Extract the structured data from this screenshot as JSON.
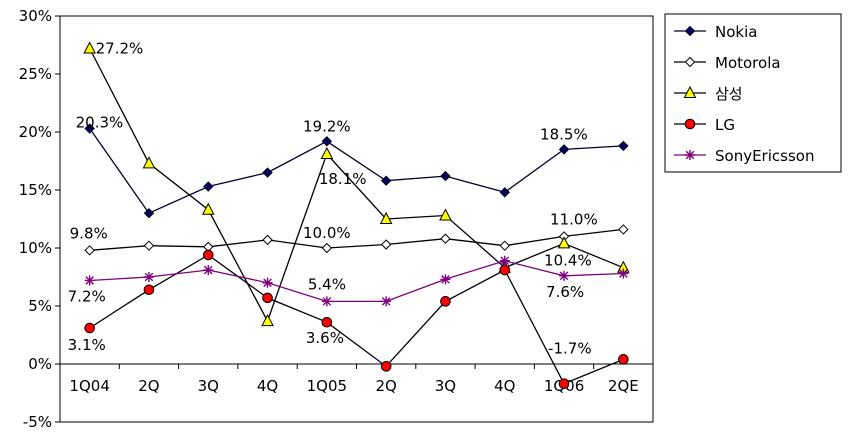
{
  "chart_data": {
    "type": "line",
    "categories": [
      "1Q04",
      "2Q",
      "3Q",
      "4Q",
      "1Q05",
      "2Q",
      "3Q",
      "4Q",
      "1Q06",
      "2QE"
    ],
    "ylim": [
      -5,
      30
    ],
    "yticks": [
      -5,
      0,
      5,
      10,
      15,
      20,
      25,
      30
    ],
    "ytick_labels": [
      "-5%",
      "0%",
      "5%",
      "10%",
      "15%",
      "20%",
      "25%",
      "30%"
    ],
    "grid": false,
    "legend_position": "right",
    "series": [
      {
        "name": "Nokia",
        "marker": "diamond-filled",
        "color": "#000033",
        "marker_fill": "#000066",
        "values": [
          20.3,
          13.0,
          15.3,
          16.5,
          19.2,
          15.8,
          16.2,
          14.8,
          18.5,
          18.8
        ]
      },
      {
        "name": "Motorola",
        "marker": "diamond-open",
        "color": "#000000",
        "marker_fill": "#ffffff",
        "values": [
          9.8,
          10.2,
          10.1,
          10.7,
          10.0,
          10.3,
          10.8,
          10.2,
          11.0,
          11.6
        ]
      },
      {
        "name": "삼성",
        "marker": "triangle",
        "color": "#000000",
        "marker_fill": "#ffff00",
        "values": [
          27.2,
          17.3,
          13.3,
          3.7,
          18.1,
          12.5,
          12.8,
          8.3,
          10.4,
          8.3
        ]
      },
      {
        "name": "LG",
        "marker": "circle",
        "color": "#000000",
        "marker_fill": "#ff0000",
        "values": [
          3.1,
          6.4,
          9.4,
          5.7,
          3.6,
          -0.2,
          5.4,
          8.1,
          -1.7,
          0.4
        ]
      },
      {
        "name": "SonyEricsson",
        "marker": "asterisk",
        "color": "#800080",
        "marker_fill": "#800080",
        "values": [
          7.2,
          7.5,
          8.1,
          7.0,
          5.4,
          5.4,
          7.3,
          8.9,
          7.6,
          7.8
        ]
      }
    ],
    "data_labels": [
      {
        "series": 2,
        "index": 0,
        "text": "27.2%"
      },
      {
        "series": 0,
        "index": 0,
        "text": "20.3%"
      },
      {
        "series": 1,
        "index": 0,
        "text": "9.8%"
      },
      {
        "series": 4,
        "index": 0,
        "text": "7.2%"
      },
      {
        "series": 3,
        "index": 0,
        "text": "3.1%"
      },
      {
        "series": 0,
        "index": 4,
        "text": "19.2%"
      },
      {
        "series": 2,
        "index": 4,
        "text": "18.1%"
      },
      {
        "series": 1,
        "index": 4,
        "text": "10.0%"
      },
      {
        "series": 4,
        "index": 4,
        "text": "5.4%"
      },
      {
        "series": 3,
        "index": 4,
        "text": "3.6%"
      },
      {
        "series": 0,
        "index": 8,
        "text": "18.5%"
      },
      {
        "series": 1,
        "index": 8,
        "text": "11.0%"
      },
      {
        "series": 2,
        "index": 8,
        "text": "10.4%"
      },
      {
        "series": 4,
        "index": 8,
        "text": "7.6%"
      },
      {
        "series": 3,
        "index": 8,
        "text": "-1.7%"
      }
    ]
  }
}
